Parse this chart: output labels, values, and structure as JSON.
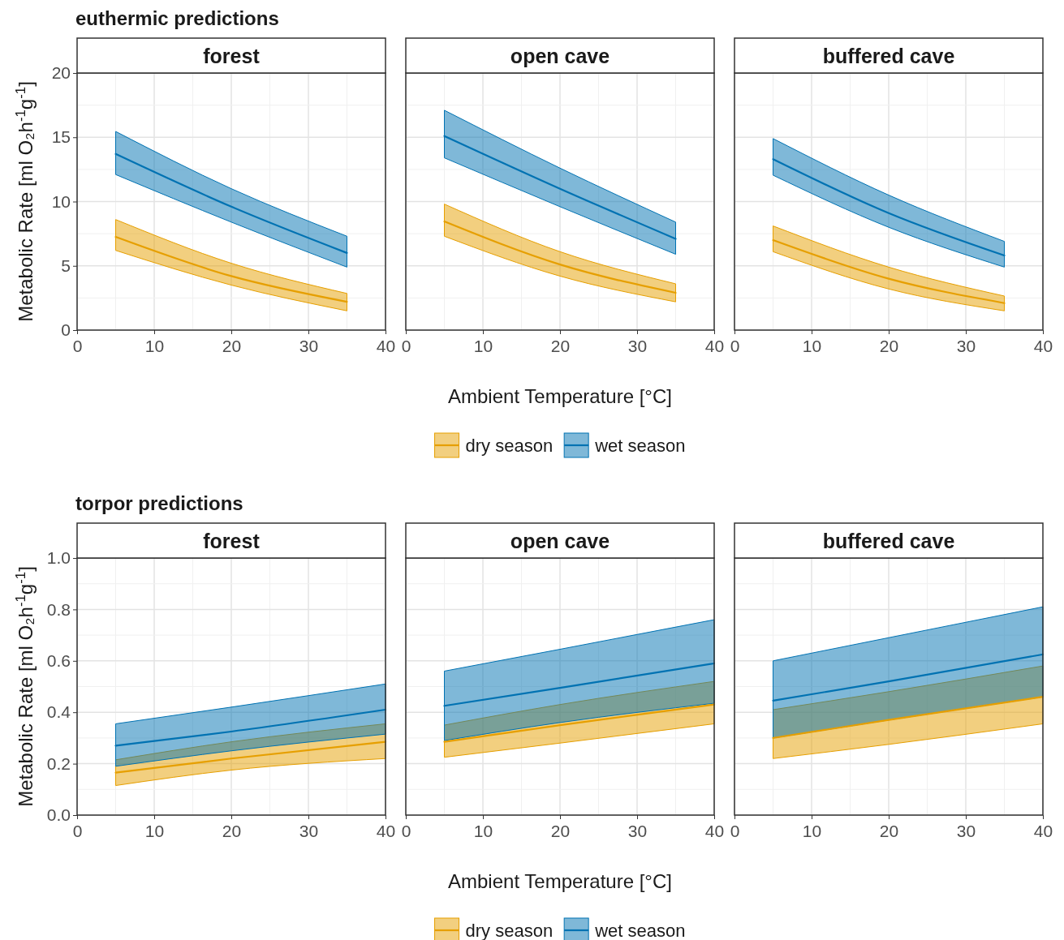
{
  "chart_data": [
    {
      "type": "line",
      "title": "forest",
      "annotations": [
        "euthermic predictions"
      ],
      "ylabel": "Metabolic Rate [ml O₂h$^{-1}$g$^{-1}$]",
      "x": [
        5,
        20,
        35
      ],
      "xlim": [
        0,
        40
      ],
      "xticks": [
        0,
        10,
        20,
        30,
        40
      ],
      "ylim": [
        0,
        20
      ],
      "yticks": [
        0,
        5,
        10,
        15,
        20
      ],
      "grid": true,
      "legend": false,
      "series": [
        {
          "color": "#e69f00",
          "values": [
            7.25,
            4.2,
            2.2
          ],
          "lower": [
            6.2,
            3.5,
            1.5
          ],
          "upper": [
            8.6,
            5.2,
            2.85
          ]
        },
        {
          "color": "#0072b2",
          "values": [
            13.7,
            9.6,
            6.0
          ],
          "lower": [
            12.1,
            8.4,
            4.9
          ],
          "upper": [
            15.45,
            11.0,
            7.3
          ]
        }
      ]
    },
    {
      "type": "line",
      "title": "open cave",
      "xlabel": "Ambient Temperature [°C]",
      "x": [
        5,
        20,
        35
      ],
      "xlim": [
        0,
        40
      ],
      "xticks": [
        0,
        10,
        20,
        30,
        40
      ],
      "ylim": [
        0,
        20
      ],
      "yticks": [
        0,
        5,
        10,
        15,
        20
      ],
      "grid": true,
      "legend": "bottom",
      "tick_labels": "x",
      "series": [
        {
          "name": "dry season",
          "color": "#e69f00",
          "values": [
            8.45,
            5.1,
            2.9
          ],
          "lower": [
            7.3,
            4.2,
            2.2
          ],
          "upper": [
            9.8,
            6.1,
            3.6
          ]
        },
        {
          "name": "wet season",
          "color": "#0072b2",
          "values": [
            15.1,
            11.0,
            7.1
          ],
          "lower": [
            13.4,
            9.6,
            5.9
          ],
          "upper": [
            17.1,
            12.6,
            8.4
          ]
        }
      ]
    },
    {
      "type": "line",
      "title": "buffered cave",
      "x": [
        5,
        20,
        35
      ],
      "xlim": [
        0,
        40
      ],
      "xticks": [
        0,
        10,
        20,
        30,
        40
      ],
      "ylim": [
        0,
        20
      ],
      "yticks": [
        0,
        5,
        10,
        15,
        20
      ],
      "grid": true,
      "legend": false,
      "tick_labels": "x",
      "series": [
        {
          "color": "#e69f00",
          "values": [
            7.0,
            4.0,
            2.1
          ],
          "lower": [
            6.1,
            3.2,
            1.5
          ],
          "upper": [
            8.1,
            4.9,
            2.65
          ]
        },
        {
          "color": "#0072b2",
          "values": [
            13.3,
            9.1,
            5.8
          ],
          "lower": [
            12.05,
            8.0,
            4.9
          ],
          "upper": [
            14.9,
            10.5,
            6.9
          ]
        }
      ]
    },
    {
      "type": "line",
      "title": "forest",
      "annotations": [
        "torpor predictions"
      ],
      "ylabel": "Metabolic Rate [ml O₂h$^{-1}$g$^{-1}$]",
      "x": [
        5,
        20,
        40
      ],
      "xlim": [
        0,
        40
      ],
      "xticks": [
        0,
        10,
        20,
        30,
        40
      ],
      "ylim": [
        0,
        1
      ],
      "yticks": [
        {
          "value": 0,
          "label": "0.0"
        },
        0.2,
        0.4,
        0.6,
        0.8,
        {
          "value": 1,
          "label": "1.0"
        }
      ],
      "grid": true,
      "legend": false,
      "series": [
        {
          "color": "#e69f00",
          "values": [
            0.165,
            0.22,
            0.285
          ],
          "lower": [
            0.115,
            0.175,
            0.22
          ],
          "upper": [
            0.215,
            0.285,
            0.355
          ]
        },
        {
          "color": "#0072b2",
          "values": [
            0.27,
            0.325,
            0.41
          ],
          "lower": [
            0.19,
            0.25,
            0.315
          ],
          "upper": [
            0.355,
            0.42,
            0.51
          ]
        }
      ]
    },
    {
      "type": "line",
      "title": "open cave",
      "xlabel": "Ambient Temperature [°C]",
      "x": [
        5,
        20,
        40
      ],
      "xlim": [
        0,
        40
      ],
      "xticks": [
        0,
        10,
        20,
        30,
        40
      ],
      "ylim": [
        0,
        1
      ],
      "yticks": [
        0,
        0.2,
        0.4,
        0.6,
        0.8,
        1
      ],
      "grid": true,
      "legend": "bottom",
      "tick_labels": "x",
      "series": [
        {
          "name": "dry season",
          "color": "#e69f00",
          "values": [
            0.285,
            0.35,
            0.43
          ],
          "lower": [
            0.225,
            0.28,
            0.355
          ],
          "upper": [
            0.35,
            0.43,
            0.52
          ]
        },
        {
          "name": "wet season",
          "color": "#0072b2",
          "values": [
            0.425,
            0.495,
            0.59
          ],
          "lower": [
            0.29,
            0.36,
            0.435
          ],
          "upper": [
            0.56,
            0.645,
            0.76
          ]
        }
      ]
    },
    {
      "type": "line",
      "title": "buffered cave",
      "x": [
        5,
        20,
        40
      ],
      "xlim": [
        0,
        40
      ],
      "xticks": [
        0,
        10,
        20,
        30,
        40
      ],
      "ylim": [
        0,
        1
      ],
      "yticks": [
        0,
        0.2,
        0.4,
        0.6,
        0.8,
        1
      ],
      "grid": true,
      "legend": false,
      "tick_labels": "x",
      "series": [
        {
          "color": "#e69f00",
          "values": [
            0.3,
            0.37,
            0.46
          ],
          "lower": [
            0.22,
            0.275,
            0.355
          ],
          "upper": [
            0.41,
            0.48,
            0.58
          ]
        },
        {
          "color": "#0072b2",
          "values": [
            0.445,
            0.52,
            0.625
          ],
          "lower": [
            0.3,
            0.37,
            0.46
          ],
          "upper": [
            0.6,
            0.69,
            0.81
          ]
        }
      ]
    }
  ]
}
